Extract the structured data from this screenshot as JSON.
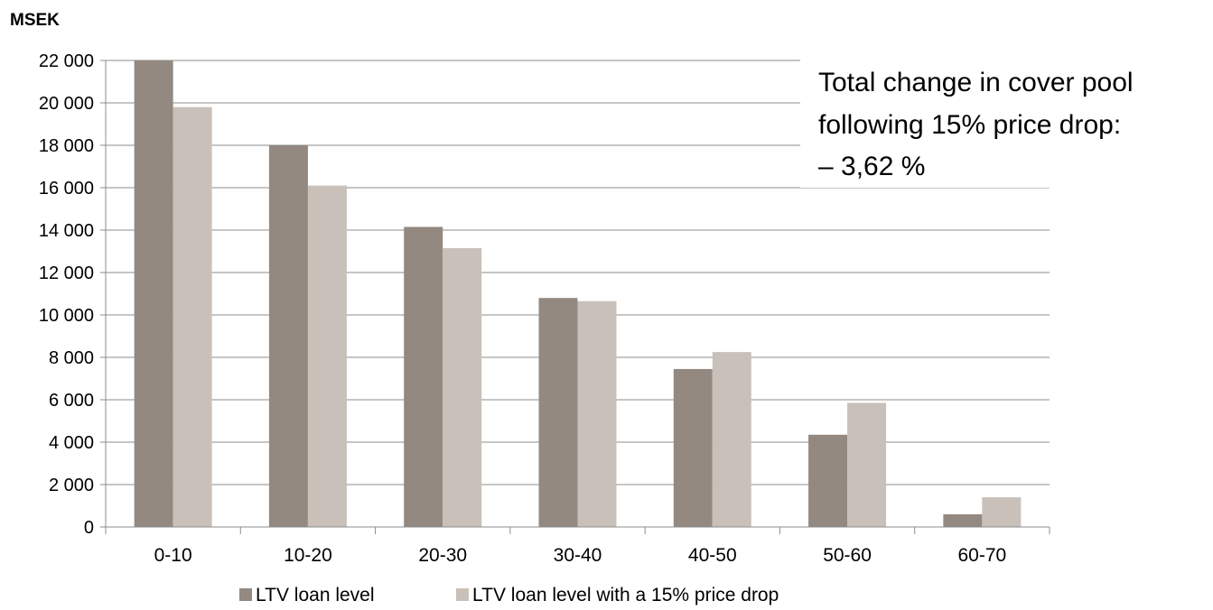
{
  "chart_data": {
    "type": "bar",
    "unit_label": "MSEK",
    "categories": [
      "0-10",
      "10-20",
      "20-30",
      "30-40",
      "40-50",
      "50-60",
      "60-70"
    ],
    "series": [
      {
        "name": "LTV loan level",
        "color": "#938980",
        "values": [
          22000,
          18000,
          14150,
          10800,
          7450,
          4350,
          600
        ]
      },
      {
        "name": "LTV loan level with a 15% price drop",
        "color": "#c9c1b9",
        "values": [
          19800,
          16100,
          13150,
          10650,
          8250,
          5850,
          1400
        ]
      }
    ],
    "ylim": [
      0,
      22000
    ],
    "yticks": [
      {
        "value": 0,
        "label": "0"
      },
      {
        "value": 2000,
        "label": "2 000"
      },
      {
        "value": 4000,
        "label": "4 000"
      },
      {
        "value": 6000,
        "label": "6 000"
      },
      {
        "value": 8000,
        "label": "8 000"
      },
      {
        "value": 10000,
        "label": "10 000"
      },
      {
        "value": 12000,
        "label": "12 000"
      },
      {
        "value": 14000,
        "label": "14 000"
      },
      {
        "value": 16000,
        "label": "16 000"
      },
      {
        "value": 18000,
        "label": "18 000"
      },
      {
        "value": 20000,
        "label": "20 000"
      },
      {
        "value": 22000,
        "label": "22 000"
      }
    ],
    "grid": true,
    "legend_position": "bottom",
    "annotation": {
      "lines": [
        "Total change in cover pool",
        "following 15% price drop:",
        "– 3,62 %"
      ]
    }
  },
  "colors": {
    "grid": "#8c8c8c",
    "axis": "#8c8c8c"
  }
}
